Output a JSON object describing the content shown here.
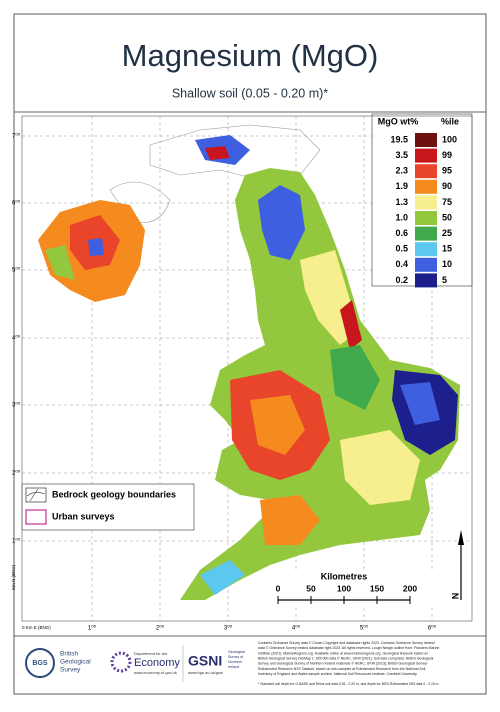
{
  "header": {
    "title": "Magnesium (MgO)",
    "subtitle": "Shallow soil (0.05 - 0.20 m)*"
  },
  "legend": {
    "value_heading": "MgO wt%",
    "percentile_heading": "%ile",
    "rows": [
      {
        "value": "19.5",
        "percentile": "100",
        "color": "#6e1010"
      },
      {
        "value": "3.5",
        "percentile": "99",
        "color": "#c8161d"
      },
      {
        "value": "2.3",
        "percentile": "95",
        "color": "#e9452b"
      },
      {
        "value": "1.9",
        "percentile": "90",
        "color": "#f58a1f"
      },
      {
        "value": "1.3",
        "percentile": "75",
        "color": "#f7ee8e"
      },
      {
        "value": "1.0",
        "percentile": "50",
        "color": "#93c83e"
      },
      {
        "value": "0.6",
        "percentile": "25",
        "color": "#3fa94b"
      },
      {
        "value": "0.5",
        "percentile": "15",
        "color": "#5cc7ef"
      },
      {
        "value": "0.4",
        "percentile": "10",
        "color": "#3e5fe0"
      },
      {
        "value": "0.2",
        "percentile": "5",
        "color": "#1d1f8c"
      }
    ]
  },
  "overlays": [
    "Bedrock geology boundaries",
    "Urban surveys"
  ],
  "axes": {
    "y_title": "Km N (BNG)",
    "x_title": "0 Km E (BNG)",
    "y_labels": [
      "7⁰⁰",
      "6⁰⁰",
      "5⁰⁰",
      "4⁰⁰",
      "3⁰⁰",
      "2⁰⁰",
      "1⁰⁰"
    ],
    "x_labels": [
      "1⁰⁰",
      "2⁰⁰",
      "3⁰⁰",
      "4⁰⁰",
      "5⁰⁰",
      "6⁰⁰"
    ]
  },
  "scale": {
    "title": "Kilometres",
    "ticks": [
      "0",
      "50",
      "100",
      "150",
      "200"
    ],
    "north": "N"
  },
  "footer": {
    "bgs": [
      "British",
      "Geological",
      "Survey"
    ],
    "bgs_short": "BGS",
    "economy_small": "Department for the",
    "economy": "Economy",
    "economy_url": "www.economy-ni.gov.uk",
    "gsni": "GSNI",
    "gsni_full": [
      "Geological",
      "Survey of",
      "Northern",
      "Ireland"
    ],
    "gsni_url": "www.bgs.ac.uk/gsni",
    "credits": [
      "Contains Ordnance Survey data © Crown Copyright and database rights 2023. Contains Ordnance Survey Ireland",
      "data © Ordnance Survey Ireland database right 2023. All rights reserved. Lough Neagh outline from: Flanders Marine",
      "Institute (2021). MarineRegions.org. Available online at www.marineregions.org. Geological linework based on",
      "British Geological Survey DiGMap 1: 625 000 data © NERC, UKRI [2021]. Soil data comprises: British Geological",
      "Survey and Geological Survey of Northern Ireland materials © NERC, UKRI [2023]; British Geological Survey-",
      "Rothamsted Research NSI* Dataset, based on sub-samples at Rothamsted Research from the National Soil",
      "Inventory of England and Wales sample archive, National Soil Resources Institute, Cranfield University."
    ],
    "footnote": "* Standard soil depth for G-BASE and Tellus soil data 0.05 - 0.20 m, and depth for BGS-Rothamsted NSI data 0 - 0.15 m"
  }
}
